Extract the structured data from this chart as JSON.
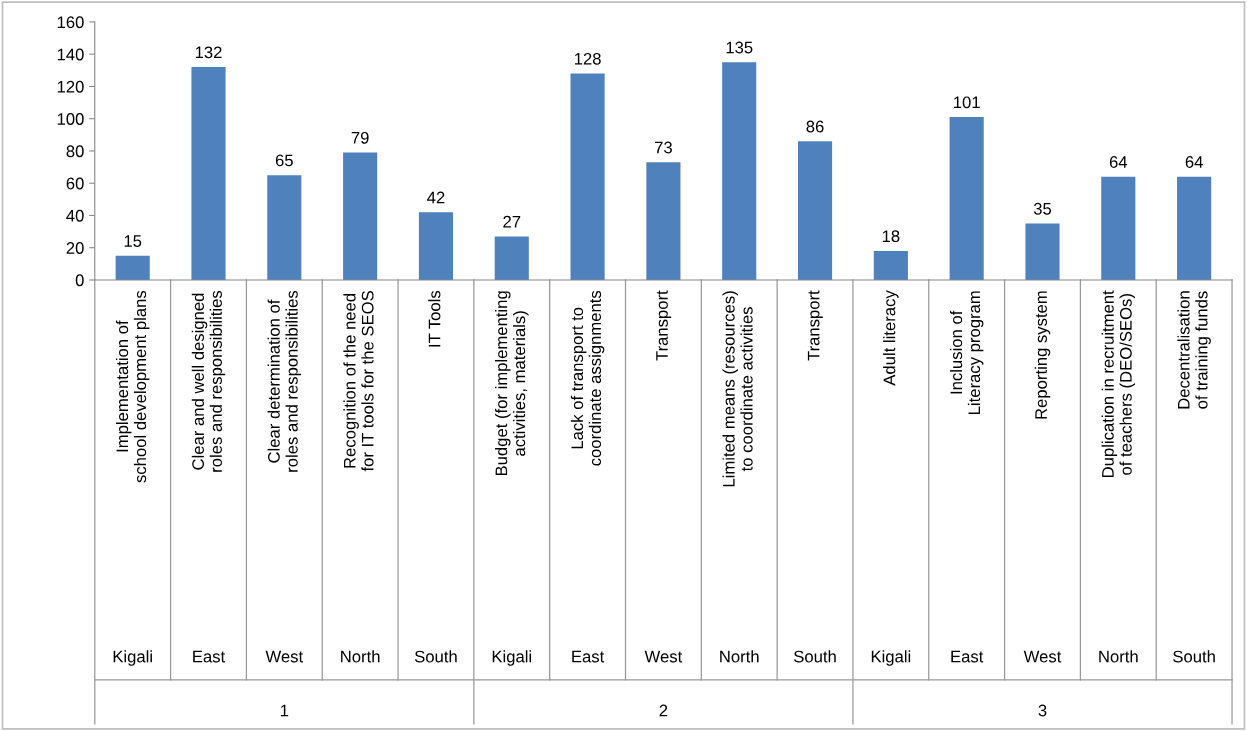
{
  "chart_data": {
    "type": "bar",
    "categories": [
      "Implementation of school development plans",
      "Clear and well designed roles and responsibilities",
      "Clear determination of roles and responsibilities",
      "Recognition of the need for IT tools for the SEOS",
      "IT Tools",
      "Budget (for implementing activities, materials)",
      "Lack of transport to coordinate assignments",
      "Transport",
      "Limited means (resources) to coordinate activities",
      "Transport",
      "Adult literacy",
      "Inclusion of Literacy program",
      "Reporting system",
      "Duplication in recruitment of teachers (DEO/SEOs)",
      "Decentralisation of training funds"
    ],
    "values": [
      15,
      132,
      65,
      79,
      42,
      27,
      128,
      73,
      135,
      86,
      18,
      101,
      35,
      64,
      64
    ],
    "color": "#4f81bd",
    "ylim": [
      0,
      160
    ],
    "yticks": [
      0,
      20,
      40,
      60,
      80,
      100,
      120,
      140,
      160
    ],
    "data_labels": true,
    "grid": false,
    "legend": false,
    "annotations": [
      "Kigali",
      "East",
      "West",
      "North",
      "South",
      "Kigali",
      "East",
      "West",
      "North",
      "South",
      "Kigali",
      "East",
      "West",
      "North",
      "South",
      "1",
      "2",
      "3"
    ]
  }
}
